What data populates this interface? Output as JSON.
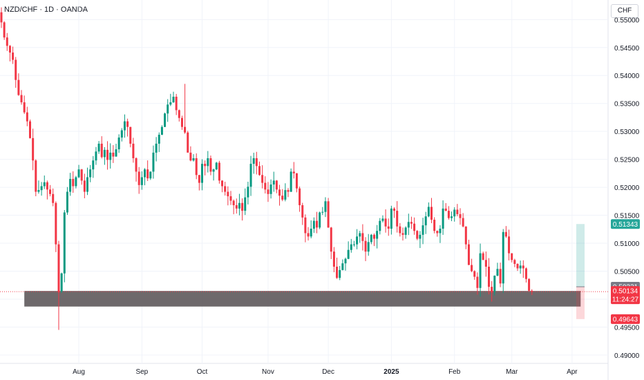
{
  "header": {
    "symbol_title": "NZD/CHF · 1D · OANDA"
  },
  "price_scale": {
    "currency_button": "CHF"
  },
  "chart_data": {
    "type": "candlestick",
    "title": "NZD/CHF · 1D · OANDA",
    "ylim": [
      0.4885,
      0.5535
    ],
    "y_ticks": [
      "0.49000",
      "0.49500",
      "0.50000",
      "0.50500",
      "0.51000",
      "0.51500",
      "0.52000",
      "0.52500",
      "0.53000",
      "0.53500",
      "0.54000",
      "0.54500",
      "0.55000"
    ],
    "x_ticks": [
      {
        "label": "Aug",
        "index": 27,
        "bold": false
      },
      {
        "label": "Sep",
        "index": 49,
        "bold": false
      },
      {
        "label": "Oct",
        "index": 70,
        "bold": false
      },
      {
        "label": "Nov",
        "index": 93,
        "bold": false
      },
      {
        "label": "Dec",
        "index": 114,
        "bold": false
      },
      {
        "label": "2025",
        "index": 136,
        "bold": true
      },
      {
        "label": "Feb",
        "index": 158,
        "bold": false
      },
      {
        "label": "Mar",
        "index": 178,
        "bold": false
      },
      {
        "label": "Apr",
        "index": 199,
        "bold": false
      }
    ],
    "price_labels": [
      {
        "label": "0.51343",
        "value": 0.51343,
        "color": "#26a69a"
      },
      {
        "label": "0.50221",
        "value": 0.50221,
        "color": "#787b86"
      },
      {
        "label": "0.50134",
        "value": 0.50134,
        "color": "#f23645",
        "sub": "11:24:27"
      },
      {
        "label": "0.49643",
        "value": 0.49643,
        "color": "#f23645"
      }
    ],
    "support_zone": {
      "low": 0.49867,
      "high": 0.50146,
      "start_index": 8,
      "end_index": 202
    },
    "position_tool": {
      "entry": 0.50221,
      "target": 0.51343,
      "stop": 0.49643,
      "start_index": 200,
      "end_index": 202
    },
    "last_price": 0.50134,
    "close_series": [
      0.5495,
      0.5468,
      0.5453,
      0.5441,
      0.5428,
      0.5392,
      0.5365,
      0.5352,
      0.5334,
      0.5318,
      0.5288,
      0.5248,
      0.5192,
      0.5195,
      0.5202,
      0.5209,
      0.5196,
      0.5188,
      0.5172,
      0.5098,
      0.5012,
      0.5046,
      0.5155,
      0.5192,
      0.5215,
      0.5202,
      0.5218,
      0.5232,
      0.5212,
      0.5192,
      0.5218,
      0.5232,
      0.5248,
      0.5264,
      0.5278,
      0.5254,
      0.5267,
      0.5249,
      0.5262,
      0.5255,
      0.5268,
      0.5289,
      0.5302,
      0.5318,
      0.5308,
      0.5278,
      0.5252,
      0.5228,
      0.5204,
      0.5218,
      0.5232,
      0.5216,
      0.5228,
      0.5262,
      0.5278,
      0.5294,
      0.5308,
      0.5332,
      0.5348,
      0.5352,
      0.5362,
      0.5338,
      0.5324,
      0.5308,
      0.5298,
      0.5262,
      0.5248,
      0.5252,
      0.5222,
      0.5208,
      0.5242,
      0.5238,
      0.5252,
      0.5228,
      0.5232,
      0.5244,
      0.5212,
      0.5202,
      0.5192,
      0.5184,
      0.5176,
      0.5168,
      0.5162,
      0.5172,
      0.5158,
      0.5182,
      0.5201,
      0.5242,
      0.5252,
      0.5238,
      0.5222,
      0.5208,
      0.5196,
      0.5188,
      0.5205,
      0.5212,
      0.5196,
      0.5185,
      0.5178,
      0.5195,
      0.5192,
      0.5228,
      0.5225,
      0.5198,
      0.5168,
      0.5146,
      0.5118,
      0.5112,
      0.5126,
      0.514,
      0.5128,
      0.5155,
      0.5156,
      0.5175,
      0.5128,
      0.5085,
      0.5058,
      0.5038,
      0.5052,
      0.5064,
      0.5072,
      0.5088,
      0.5098,
      0.5098,
      0.5112,
      0.5118,
      0.5104,
      0.5085,
      0.5102,
      0.5115,
      0.5108,
      0.5122,
      0.514,
      0.5144,
      0.513,
      0.5126,
      0.5162,
      0.5158,
      0.513,
      0.5118,
      0.5115,
      0.5128,
      0.5138,
      0.5135,
      0.5122,
      0.5108,
      0.5115,
      0.5132,
      0.5148,
      0.5165,
      0.5142,
      0.5122,
      0.5118,
      0.5126,
      0.5162,
      0.5158,
      0.5145,
      0.5148,
      0.516,
      0.5152,
      0.5145,
      0.513,
      0.5098,
      0.5061,
      0.505,
      0.504,
      0.502,
      0.5082,
      0.507,
      0.5058,
      0.5022,
      0.5012,
      0.5042,
      0.5054,
      0.5028,
      0.512,
      0.5112,
      0.5082,
      0.507,
      0.5063,
      0.5055,
      0.506,
      0.5055,
      0.5036,
      0.5015,
      0.50134
    ]
  }
}
